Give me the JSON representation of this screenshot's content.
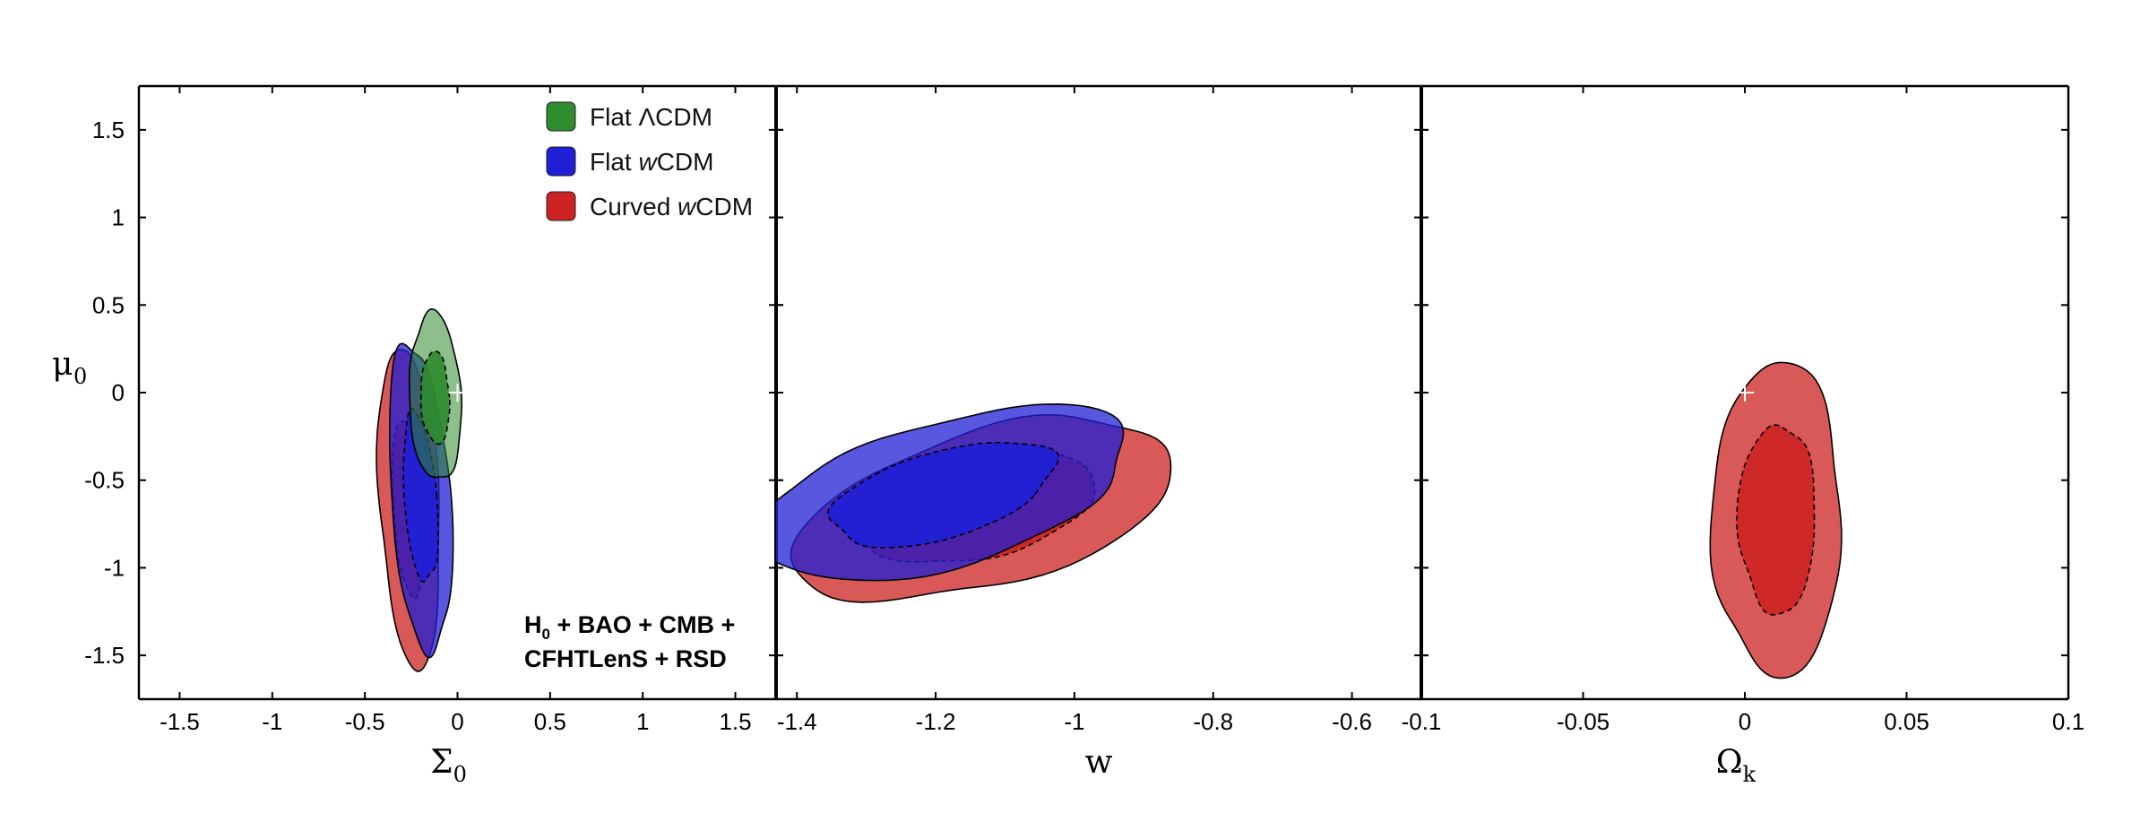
{
  "chart_data": {
    "type": "contour",
    "y_axis": {
      "label": "μ",
      "label_sub": "0",
      "range": [
        -1.75,
        1.75
      ],
      "ticks": [
        -1.5,
        -1,
        -0.5,
        0,
        0.5,
        1,
        1.5
      ],
      "tick_labels": [
        "-1.5",
        "-1",
        "-0.5",
        "0",
        "0.5",
        "1",
        "1.5"
      ]
    },
    "legend": {
      "placement": "top-right of first panel",
      "items": [
        {
          "label_main": "Flat ΛCDM",
          "label_pre": "Flat ",
          "label_italic": "",
          "label_post": "ΛCDM",
          "color": "#2e8b2e"
        },
        {
          "label_main": "Flat wCDM",
          "label_pre": "Flat ",
          "label_italic": "w",
          "label_post": "CDM",
          "color": "#1f1fd6"
        },
        {
          "label_main": "Curved wCDM",
          "label_pre": "Curved ",
          "label_italic": "w",
          "label_post": "CDM",
          "color": "#cc2222"
        }
      ]
    },
    "annotation": {
      "line1_pre": "H",
      "line1_sub": "0",
      "line1_post": " + BAO + CMB +",
      "line2": "CFHTLenS + RSD"
    },
    "fiducial_marker": {
      "mu0": 0,
      "symbol": "+"
    },
    "panels": [
      {
        "id": "sigma0",
        "x_label": "Σ",
        "x_label_sub": "0",
        "x_range": [
          -1.72,
          1.72
        ],
        "x_ticks": [
          -1.5,
          -1,
          -0.5,
          0,
          0.5,
          1,
          1.5
        ],
        "x_tick_labels": [
          "-1.5",
          "-1",
          "-0.5",
          "0",
          "0.5",
          "1",
          "1.5"
        ],
        "fiducial_x": 0,
        "contours": [
          {
            "model": "Curved wCDM",
            "color": "#cc2222",
            "center": [
              -0.26,
              -0.65
            ],
            "semi_axes": [
              0.16,
              0.92
            ],
            "angle": 3,
            "outer_scale": 1.0,
            "inner_scale": 0.55
          },
          {
            "model": "Flat wCDM",
            "color": "#1f1fd6",
            "center": [
              -0.2,
              -0.6
            ],
            "semi_axes": [
              0.16,
              0.88
            ],
            "angle": 4,
            "outer_scale": 1.0,
            "inner_scale": 0.55
          },
          {
            "model": "Flat ΛCDM",
            "color": "#2e8b2e",
            "center": [
              -0.12,
              -0.03
            ],
            "semi_axes": [
              0.14,
              0.48
            ],
            "angle": 2,
            "outer_scale": 1.0,
            "inner_scale": 0.55
          }
        ]
      },
      {
        "id": "w",
        "x_label": "w",
        "x_label_sub": "",
        "x_range": [
          -1.43,
          -0.5
        ],
        "x_ticks": [
          -1.4,
          -1.2,
          -1.0,
          -0.8,
          -0.6
        ],
        "x_tick_labels": [
          "-1.4",
          "-1.2",
          "-1",
          "-0.8",
          "-0.6"
        ],
        "fiducial_x": -1,
        "contours": [
          {
            "model": "Curved wCDM",
            "color": "#cc2222",
            "center": [
              -1.13,
              -0.67
            ],
            "semi_axes": [
              0.24,
              0.52
            ],
            "angle": 0,
            "outer_scale": 1.0,
            "inner_scale": 0.6,
            "skew": 0.55
          },
          {
            "model": "Flat wCDM",
            "color": "#1f1fd6",
            "center": [
              -1.19,
              -0.58
            ],
            "semi_axes": [
              0.23,
              0.5
            ],
            "angle": 0,
            "outer_scale": 1.0,
            "inner_scale": 0.6,
            "skew": 0.6
          }
        ]
      },
      {
        "id": "omega_k",
        "x_label": "Ω",
        "x_label_sub": "k",
        "x_range": [
          -0.1,
          0.1
        ],
        "x_ticks": [
          -0.1,
          -0.05,
          0,
          0.05,
          0.1
        ],
        "x_tick_labels": [
          "-0.1",
          "-0.05",
          "0",
          "0.05",
          "0.1"
        ],
        "fiducial_x": 0,
        "contours": [
          {
            "model": "Curved wCDM",
            "color": "#cc2222",
            "center": [
              0.01,
              -0.72
            ],
            "semi_axes": [
              0.02,
              0.9
            ],
            "angle": 0,
            "outer_scale": 1.0,
            "inner_scale": 0.6
          }
        ]
      }
    ]
  }
}
